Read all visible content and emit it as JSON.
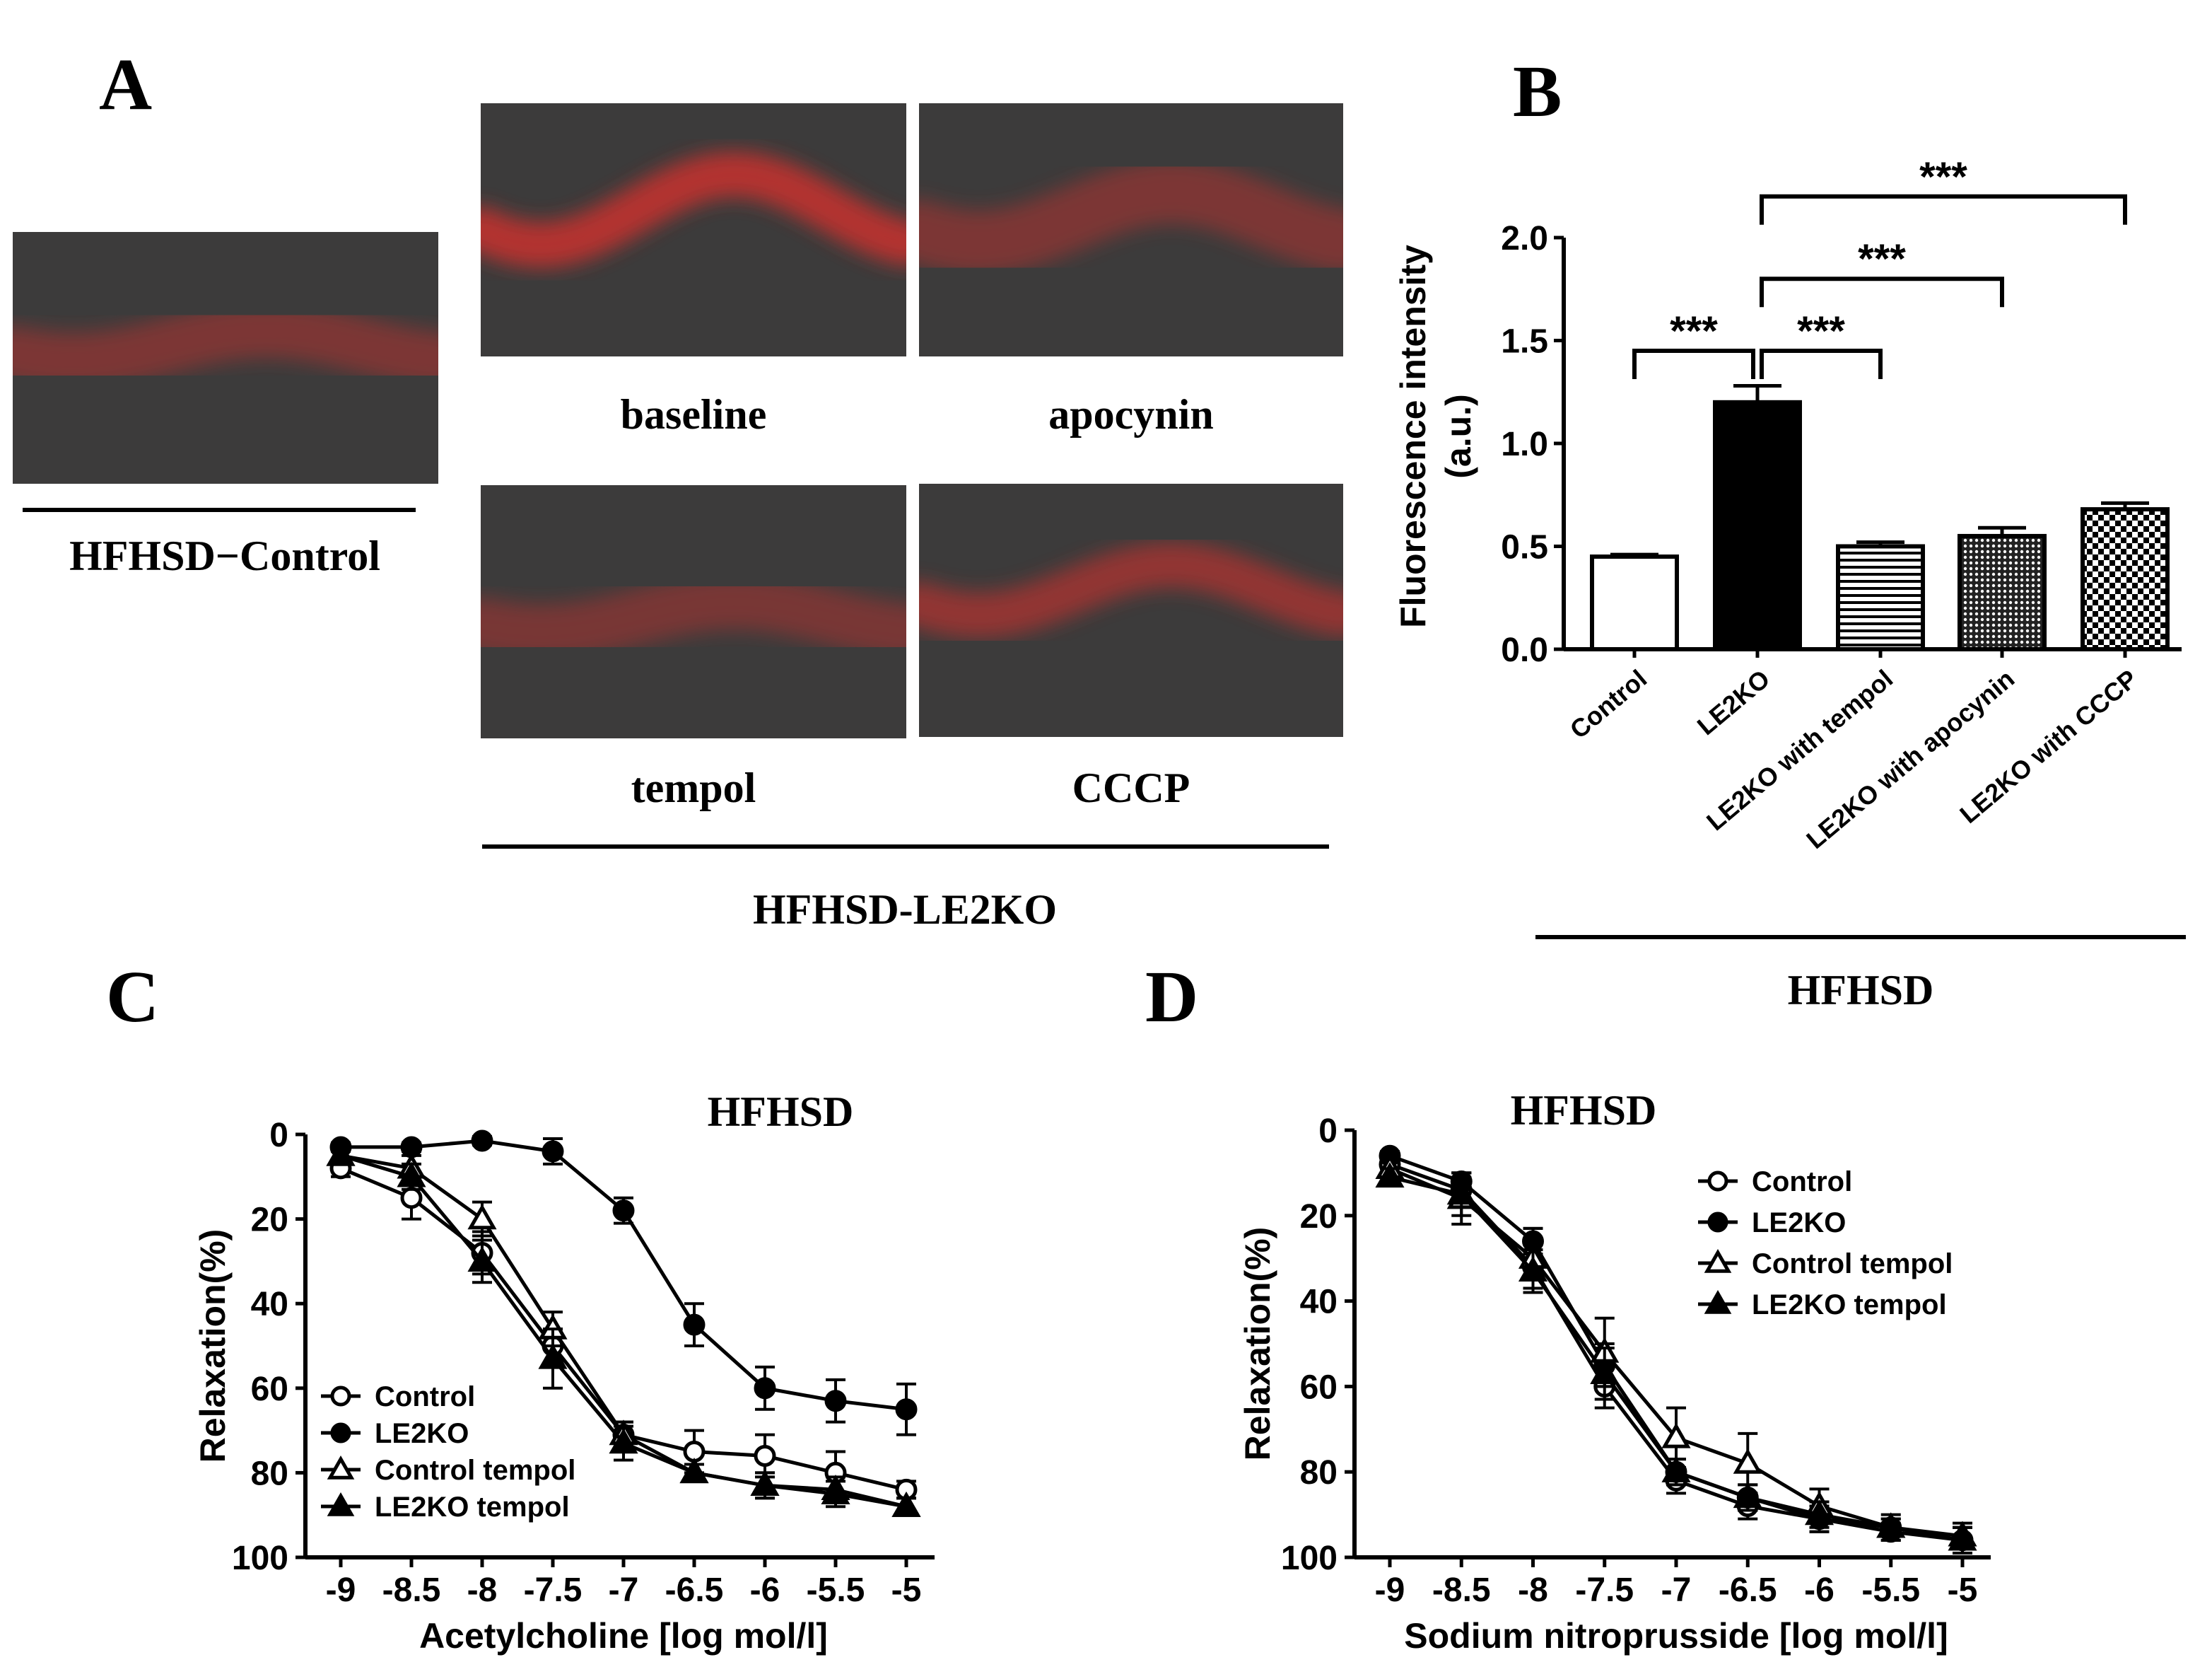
{
  "panel_a": {
    "letter": "A",
    "control_label": "HFHSD−Control",
    "group_label": "HFHSD-LE2KO",
    "images": [
      {
        "id": "control",
        "label": "",
        "intensity": 0.35
      },
      {
        "id": "baseline",
        "label": "baseline",
        "intensity": 1.0
      },
      {
        "id": "apocynin",
        "label": "apocynin",
        "intensity": 0.35
      },
      {
        "id": "tempol",
        "label": "tempol",
        "intensity": 0.3
      },
      {
        "id": "cccp",
        "label": "CCCP",
        "intensity": 0.6
      }
    ]
  },
  "panel_b": {
    "letter": "B",
    "group_label": "HFHSD"
  },
  "panel_c": {
    "letter": "C"
  },
  "panel_d": {
    "letter": "D"
  },
  "colors": {
    "background": "#ffffff",
    "ink": "#000000",
    "tissue_base": "#3c3b3b",
    "stain": "#c8322d"
  },
  "chart_data": [
    {
      "type": "bar",
      "panel": "B",
      "title": "",
      "ylabel": "Fluorescence intensity",
      "ylabel2": "(a.u.)",
      "xlabel": "",
      "ylim": [
        0,
        2.0
      ],
      "yticks": [
        0.0,
        0.5,
        1.0,
        1.5,
        2.0
      ],
      "ytick_labels": [
        "0.0",
        "0.5",
        "1.0",
        "1.5",
        "2.0"
      ],
      "categories": [
        "Control",
        "LE2KO",
        "LE2KO with tempol",
        "LE2KO with apocynin",
        "LE2KO with CCCP"
      ],
      "values": [
        0.45,
        1.2,
        0.5,
        0.55,
        0.68
      ],
      "errors": [
        0.01,
        0.08,
        0.02,
        0.04,
        0.03
      ],
      "fills": [
        "open",
        "solid",
        "horizontal-lines",
        "dense-dots",
        "checker"
      ],
      "significance": [
        {
          "from": 0,
          "to": 1,
          "label": "***"
        },
        {
          "from": 1,
          "to": 2,
          "label": "***"
        },
        {
          "from": 1,
          "to": 3,
          "label": "***"
        },
        {
          "from": 1,
          "to": 4,
          "label": "***"
        }
      ]
    },
    {
      "type": "line",
      "panel": "C",
      "title": "HFHSD",
      "xlabel": "Acetylcholine [log mol/l]",
      "ylabel": "Relaxation(%)",
      "x": [
        -9,
        -8.5,
        -8,
        -7.5,
        -7,
        -6.5,
        -6,
        -5.5,
        -5
      ],
      "xtick_labels": [
        "-9",
        "-8.5",
        "-8",
        "-7.5",
        "-7",
        "-6.5",
        "-6",
        "-5.5",
        "-5"
      ],
      "xlim": [
        -9,
        -5
      ],
      "ylim": [
        0,
        100
      ],
      "y_inverted": true,
      "yticks": [
        0,
        20,
        40,
        60,
        80,
        100
      ],
      "ytick_labels": [
        "0",
        "20",
        "40",
        "60",
        "80",
        "100"
      ],
      "legend_position": "bottom-left",
      "series": [
        {
          "name": "Control",
          "marker": "circle-open",
          "values": [
            8,
            15,
            28,
            50,
            71,
            75,
            76,
            80,
            84
          ],
          "errors": [
            2,
            5,
            5,
            4,
            3,
            5,
            5,
            5,
            2
          ]
        },
        {
          "name": "LE2KO",
          "marker": "circle-filled",
          "values": [
            3,
            3,
            1.5,
            4,
            18,
            45,
            60,
            63,
            65
          ],
          "errors": [
            1,
            1,
            1,
            3,
            3,
            5,
            5,
            5,
            6
          ]
        },
        {
          "name": "Control tempol",
          "marker": "triangle-open",
          "values": [
            5,
            8,
            20,
            46,
            71,
            80,
            83,
            84,
            88
          ],
          "errors": [
            2,
            3,
            4,
            4,
            3,
            2,
            3,
            3,
            2
          ]
        },
        {
          "name": "LE2KO tempol",
          "marker": "triangle-filled",
          "values": [
            5,
            10,
            30,
            53,
            73,
            80,
            83,
            85,
            88
          ],
          "errors": [
            2,
            3,
            5,
            7,
            4,
            2,
            3,
            3,
            2
          ]
        }
      ]
    },
    {
      "type": "line",
      "panel": "D",
      "title": "HFHSD",
      "xlabel": "Sodium nitroprusside [log mol/l]",
      "ylabel": "Relaxation(%)",
      "x": [
        -9,
        -8.5,
        -8,
        -7.5,
        -7,
        -6.5,
        -6,
        -5.5,
        -5
      ],
      "xtick_labels": [
        "-9",
        "-8.5",
        "-8",
        "-7.5",
        "-7",
        "-6.5",
        "-6",
        "-5.5",
        "-5"
      ],
      "xlim": [
        -9,
        -5
      ],
      "ylim": [
        0,
        100
      ],
      "y_inverted": true,
      "yticks": [
        0,
        20,
        40,
        60,
        80,
        100
      ],
      "ytick_labels": [
        "0",
        "20",
        "40",
        "60",
        "80",
        "100"
      ],
      "legend_position": "top-right",
      "series": [
        {
          "name": "Control",
          "marker": "circle-open",
          "values": [
            8,
            14,
            32,
            60,
            82,
            88,
            91,
            93,
            96
          ],
          "errors": [
            2,
            3,
            6,
            5,
            3,
            3,
            3,
            2,
            3
          ]
        },
        {
          "name": "LE2KO",
          "marker": "circle-filled",
          "values": [
            6,
            12,
            26,
            55,
            80,
            86,
            91,
            94,
            96
          ],
          "errors": [
            1,
            2,
            3,
            5,
            3,
            3,
            3,
            2,
            3
          ]
        },
        {
          "name": "Control tempol",
          "marker": "triangle-open",
          "values": [
            9,
            16,
            30,
            52,
            72,
            78,
            88,
            93,
            95
          ],
          "errors": [
            2,
            6,
            7,
            8,
            7,
            7,
            4,
            3,
            3
          ]
        },
        {
          "name": "LE2KO tempol",
          "marker": "triangle-filled",
          "values": [
            11,
            15,
            33,
            57,
            80,
            86,
            90,
            93,
            96
          ],
          "errors": [
            2,
            5,
            5,
            6,
            3,
            3,
            3,
            2,
            3
          ]
        }
      ]
    }
  ]
}
